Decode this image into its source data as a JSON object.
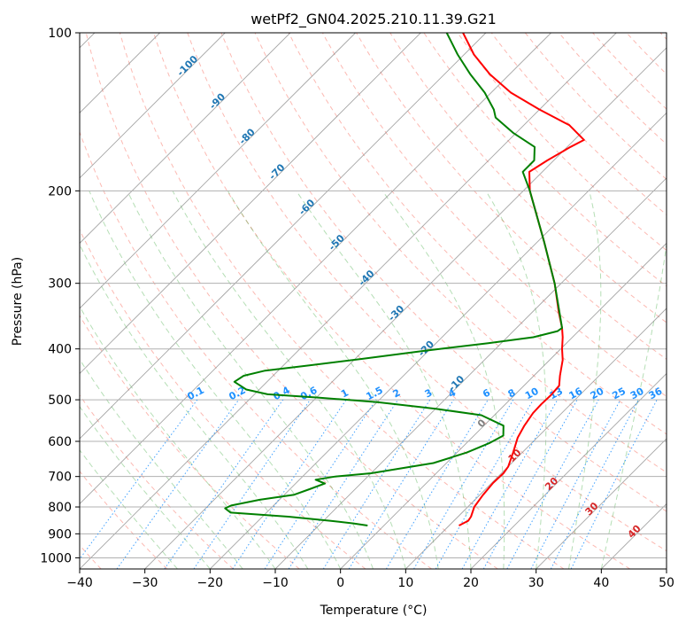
{
  "chart_data": {
    "type": "line",
    "subtype": "skew-T log-P thermodynamic diagram",
    "title": "wetPf2_GN04.2025.210.11.39.G21",
    "xlabel": "Temperature (°C)",
    "ylabel": "Pressure (hPa)",
    "xlim": [
      -40,
      50
    ],
    "ylim": [
      1050,
      100
    ],
    "yscale": "log",
    "grid": true,
    "x_ticks": [
      "−40",
      "−30",
      "−20",
      "−10",
      "0",
      "10",
      "20",
      "30",
      "40",
      "50"
    ],
    "y_ticks": [
      "100",
      "200",
      "300",
      "400",
      "500",
      "600",
      "700",
      "800",
      "900",
      "1000"
    ],
    "series": [
      {
        "role": "temperature",
        "color": "#ff0000",
        "points": [
          {
            "p": 868,
            "t": 11.5
          },
          {
            "p": 850,
            "t": 12.2
          },
          {
            "p": 835,
            "t": 12.0
          },
          {
            "p": 800,
            "t": 11.0
          },
          {
            "p": 760,
            "t": 10.5
          },
          {
            "p": 720,
            "t": 10.2
          },
          {
            "p": 690,
            "t": 10.3
          },
          {
            "p": 670,
            "t": 10.0
          },
          {
            "p": 630,
            "t": 8.6
          },
          {
            "p": 590,
            "t": 7.0
          },
          {
            "p": 560,
            "t": 6.2
          },
          {
            "p": 530,
            "t": 5.6
          },
          {
            "p": 510,
            "t": 5.5
          },
          {
            "p": 490,
            "t": 5.6
          },
          {
            "p": 470,
            "t": 5.4
          },
          {
            "p": 450,
            "t": 4.0
          },
          {
            "p": 420,
            "t": 2.0
          },
          {
            "p": 400,
            "t": 0.2
          },
          {
            "p": 380,
            "t": -1.5
          },
          {
            "p": 365,
            "t": -3.0
          },
          {
            "p": 340,
            "t": -6.0
          },
          {
            "p": 300,
            "t": -11.0
          },
          {
            "p": 250,
            "t": -19.0
          },
          {
            "p": 200,
            "t": -29.0
          },
          {
            "p": 184,
            "t": -32.0
          },
          {
            "p": 175,
            "t": -31.0
          },
          {
            "p": 165,
            "t": -29.5
          },
          {
            "p": 160,
            "t": -28.5
          },
          {
            "p": 150,
            "t": -33.0
          },
          {
            "p": 140,
            "t": -40.0
          },
          {
            "p": 130,
            "t": -47.0
          },
          {
            "p": 120,
            "t": -53.0
          },
          {
            "p": 110,
            "t": -58.5
          },
          {
            "p": 100,
            "t": -63.5
          }
        ]
      },
      {
        "role": "dewpoint",
        "color": "#008000",
        "points": [
          {
            "p": 868,
            "t": -2.5
          },
          {
            "p": 860,
            "t": -5.0
          },
          {
            "p": 850,
            "t": -9.0
          },
          {
            "p": 835,
            "t": -16.0
          },
          {
            "p": 820,
            "t": -25.5
          },
          {
            "p": 805,
            "t": -27.0
          },
          {
            "p": 795,
            "t": -26.5
          },
          {
            "p": 775,
            "t": -23.0
          },
          {
            "p": 758,
            "t": -18.5
          },
          {
            "p": 740,
            "t": -17.0
          },
          {
            "p": 722,
            "t": -15.5
          },
          {
            "p": 710,
            "t": -17.5
          },
          {
            "p": 700,
            "t": -15.0
          },
          {
            "p": 690,
            "t": -10.0
          },
          {
            "p": 660,
            "t": -2.0
          },
          {
            "p": 630,
            "t": 1.5
          },
          {
            "p": 605,
            "t": 3.5
          },
          {
            "p": 585,
            "t": 4.5
          },
          {
            "p": 560,
            "t": 3.0
          },
          {
            "p": 535,
            "t": -2.0
          },
          {
            "p": 520,
            "t": -10.0
          },
          {
            "p": 505,
            "t": -20.0
          },
          {
            "p": 495,
            "t": -30.0
          },
          {
            "p": 488,
            "t": -38.0
          },
          {
            "p": 478,
            "t": -42.0
          },
          {
            "p": 462,
            "t": -45.0
          },
          {
            "p": 450,
            "t": -44.5
          },
          {
            "p": 440,
            "t": -42.0
          },
          {
            "p": 430,
            "t": -36.0
          },
          {
            "p": 418,
            "t": -29.0
          },
          {
            "p": 404,
            "t": -21.0
          },
          {
            "p": 390,
            "t": -12.0
          },
          {
            "p": 380,
            "t": -6.0
          },
          {
            "p": 370,
            "t": -3.2
          },
          {
            "p": 365,
            "t": -3.0
          },
          {
            "p": 300,
            "t": -11.0
          },
          {
            "p": 250,
            "t": -19.0
          },
          {
            "p": 200,
            "t": -29.0
          },
          {
            "p": 184,
            "t": -33.0
          },
          {
            "p": 175,
            "t": -33.0
          },
          {
            "p": 165,
            "t": -35.0
          },
          {
            "p": 155,
            "t": -40.5
          },
          {
            "p": 145,
            "t": -45.5
          },
          {
            "p": 140,
            "t": -47.0
          },
          {
            "p": 130,
            "t": -51.0
          },
          {
            "p": 120,
            "t": -56.0
          },
          {
            "p": 110,
            "t": -61.0
          },
          {
            "p": 100,
            "t": -66.0
          }
        ]
      }
    ],
    "background": {
      "skew_factor": 35,
      "isotherms_c": [
        -120,
        -110,
        -100,
        -90,
        -80,
        -70,
        -60,
        -50,
        -40,
        -30,
        -20,
        -10,
        0,
        10,
        20,
        30,
        40,
        50
      ],
      "dry_adiabats_theta_c": [
        -40,
        -30,
        -20,
        -10,
        0,
        10,
        20,
        30,
        40,
        50,
        60,
        70,
        80,
        90,
        100,
        110,
        120,
        130,
        140,
        150,
        160,
        170,
        180,
        190,
        200,
        220
      ],
      "moist_adiabat_origins_c": [
        -25,
        -20,
        -15,
        -10,
        -5,
        0,
        5,
        10,
        15,
        20,
        25,
        30,
        35,
        40
      ],
      "mixing_ratio_lines_gkg": [
        0.1,
        0.2,
        0.4,
        0.6,
        1,
        1.5,
        2,
        3,
        4,
        6,
        8,
        10,
        13,
        16,
        20,
        25,
        30,
        36
      ],
      "mixing_ratio_labels": [
        "0.1",
        "0.2",
        "0.4",
        "0.6",
        "1",
        "1.5",
        "2",
        "3",
        "4",
        "6",
        "8",
        "10",
        "13",
        "16",
        "20",
        "25",
        "30",
        "36"
      ],
      "wet_bulb_labels": [
        {
          "text": "-100"
        },
        {
          "text": "-90"
        },
        {
          "text": "-80"
        },
        {
          "text": "-70"
        },
        {
          "text": "-60"
        },
        {
          "text": "-50"
        },
        {
          "text": "-40"
        },
        {
          "text": "-30"
        },
        {
          "text": "-20"
        },
        {
          "text": "-10"
        }
      ],
      "theta_e_labels": [
        {
          "text": "0",
          "color": "#808080"
        },
        {
          "text": "10",
          "color": "#d62728"
        },
        {
          "text": "20",
          "color": "#d62728"
        },
        {
          "text": "30",
          "color": "#d62728"
        },
        {
          "text": "40",
          "color": "#d62728"
        }
      ]
    },
    "colors": {
      "temperature": "#ff0000",
      "dewpoint": "#008000",
      "grid": "#b0b0b0",
      "isotherm": "#808080",
      "dry_adiabat": "#fa8072",
      "moist_adiabat": "#2ca02c",
      "mixing_ratio": "#1e90ff",
      "mixing_ratio_label": "#1e90ff",
      "wet_bulb_label": "#1f77b4",
      "theta_e_label": "#d62728"
    }
  }
}
